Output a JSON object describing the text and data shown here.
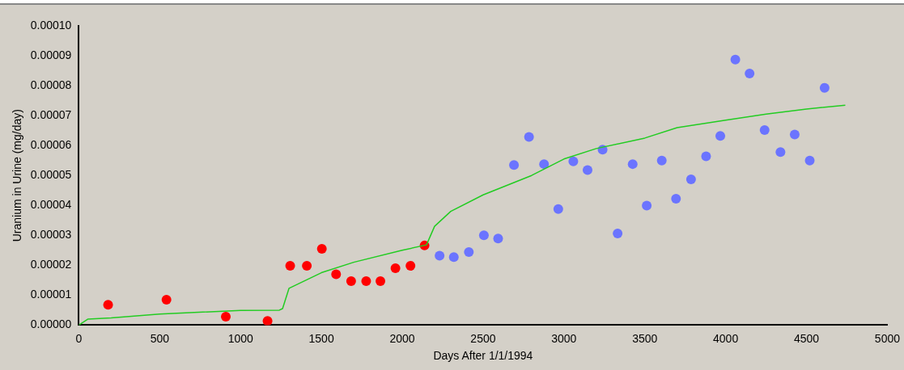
{
  "chart_data": {
    "type": "scatter",
    "xlabel": "Days After 1/1/1994",
    "ylabel": "Uranium in Urine (mg/day)",
    "marker": "circle",
    "grid": false,
    "legend": false,
    "xlim": [
      0,
      5000
    ],
    "xticks": [
      0,
      500,
      1000,
      1500,
      2000,
      2500,
      3000,
      3500,
      4000,
      4500,
      5000
    ],
    "ylim": [
      0,
      0.0001
    ],
    "yticks": [
      {
        "value": 0,
        "label": "0.00000"
      },
      {
        "value": 1e-05,
        "label": "0.00001"
      },
      {
        "value": 2e-05,
        "label": "0.00002"
      },
      {
        "value": 3e-05,
        "label": "0.00003"
      },
      {
        "value": 4e-05,
        "label": "0.00004"
      },
      {
        "value": 5e-05,
        "label": "0.00005"
      },
      {
        "value": 6e-05,
        "label": "0.00006"
      },
      {
        "value": 7e-05,
        "label": "0.00007"
      },
      {
        "value": 8e-05,
        "label": "0.00008"
      },
      {
        "value": 9e-05,
        "label": "0.00009"
      },
      {
        "value": 0.0001,
        "label": "0.00010"
      }
    ],
    "series": [
      {
        "type": "line",
        "marker": "none",
        "color": "#22cc22",
        "x": [
          0,
          57,
          200,
          500,
          1000,
          1240,
          1260,
          1300,
          1500,
          1700,
          2000,
          2150,
          2200,
          2300,
          2500,
          2800,
          3000,
          3200,
          3500,
          3700,
          4000,
          4250,
          4500,
          4740
        ],
        "values": [
          0,
          2e-06,
          2.4e-06,
          3.7e-06,
          4.9e-06,
          5e-06,
          5.5e-06,
          1.23e-05,
          1.75e-05,
          2.1e-05,
          2.5e-05,
          2.68e-05,
          3.3e-05,
          3.8e-05,
          4.35e-05,
          5e-05,
          5.55e-05,
          5.9e-05,
          6.25e-05,
          6.6e-05,
          6.85e-05,
          7.05e-05,
          7.22e-05,
          7.35e-05
        ]
      },
      {
        "color": "#ff0000",
        "x": [
          181,
          542,
          909,
          1167,
          1307,
          1410,
          1503,
          1591,
          1684,
          1777,
          1865,
          1958,
          2051,
          2138
        ],
        "values": [
          6.8e-06,
          8.5e-06,
          2.8e-06,
          1.4e-06,
          1.98e-05,
          1.98e-05,
          2.55e-05,
          1.7e-05,
          1.47e-05,
          1.47e-05,
          1.47e-05,
          1.9e-05,
          1.98e-05,
          2.66e-05
        ]
      },
      {
        "color": "#6b74ff",
        "x": [
          2231,
          2319,
          2412,
          2505,
          2593,
          2691,
          2784,
          2877,
          2965,
          3058,
          3146,
          3239,
          3332,
          3425,
          3512,
          3605,
          3693,
          3786,
          3879,
          3967,
          4060,
          4148,
          4241,
          4339,
          4427,
          4520,
          4612
        ],
        "values": [
          2.32e-05,
          2.27e-05,
          2.44e-05,
          3e-05,
          2.89e-05,
          5.35e-05,
          6.29e-05,
          5.38e-05,
          3.88e-05,
          5.47e-05,
          5.18e-05,
          5.86e-05,
          3.06e-05,
          5.38e-05,
          3.99e-05,
          5.5e-05,
          4.22e-05,
          4.87e-05,
          5.64e-05,
          6.32e-05,
          8.87e-05,
          8.41e-05,
          6.52e-05,
          5.78e-05,
          6.37e-05,
          5.5e-05,
          7.93e-05
        ]
      }
    ]
  }
}
